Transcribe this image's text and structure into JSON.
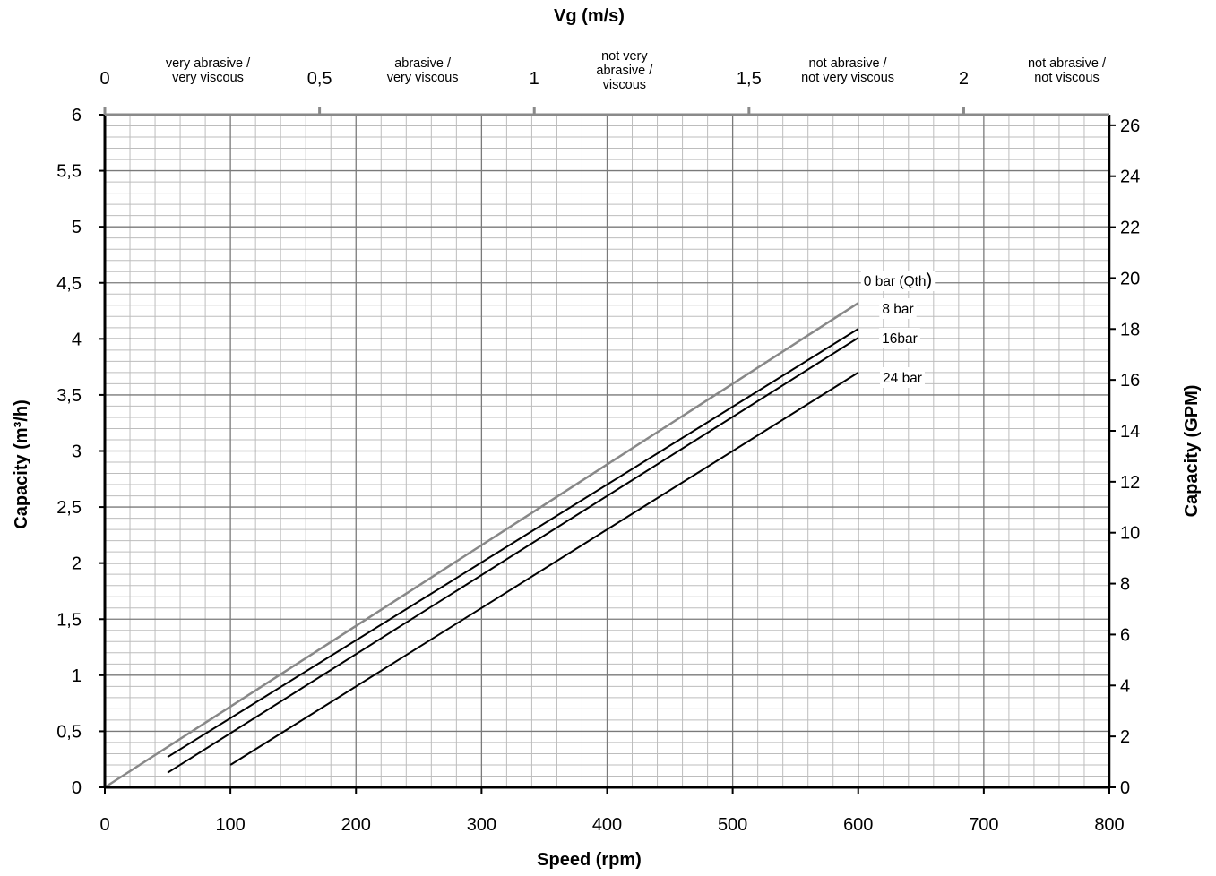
{
  "chart_data": {
    "type": "line",
    "x_axis": {
      "label": "Speed (rpm)",
      "range": [
        0,
        800
      ],
      "ticks": [
        {
          "value": 0,
          "label": "0"
        },
        {
          "value": 100,
          "label": "100"
        },
        {
          "value": 200,
          "label": "200"
        },
        {
          "value": 300,
          "label": "300"
        },
        {
          "value": 400,
          "label": "400"
        },
        {
          "value": 500,
          "label": "500"
        },
        {
          "value": 600,
          "label": "600"
        },
        {
          "value": 700,
          "label": "700"
        },
        {
          "value": 800,
          "label": "800"
        }
      ]
    },
    "y_axis": {
      "label": "Capacity (m³/h)",
      "range": [
        0,
        6
      ],
      "ticks": [
        {
          "value": 0,
          "label": "0"
        },
        {
          "value": 0.5,
          "label": "0,5"
        },
        {
          "value": 1,
          "label": "1"
        },
        {
          "value": 1.5,
          "label": "1,5"
        },
        {
          "value": 2,
          "label": "2"
        },
        {
          "value": 2.5,
          "label": "2,5"
        },
        {
          "value": 3,
          "label": "3"
        },
        {
          "value": 3.5,
          "label": "3,5"
        },
        {
          "value": 4,
          "label": "4"
        },
        {
          "value": 4.5,
          "label": "4,5"
        },
        {
          "value": 5,
          "label": "5"
        },
        {
          "value": 5.5,
          "label": "5,5"
        },
        {
          "value": 6,
          "label": "6"
        }
      ]
    },
    "y2_axis": {
      "label": "Capacity (GPM)",
      "range": [
        0,
        26.417
      ],
      "ticks": [
        {
          "value": 0,
          "label": "0"
        },
        {
          "value": 2,
          "label": "2"
        },
        {
          "value": 4,
          "label": "4"
        },
        {
          "value": 6,
          "label": "6"
        },
        {
          "value": 8,
          "label": "8"
        },
        {
          "value": 10,
          "label": "10"
        },
        {
          "value": 12,
          "label": "12"
        },
        {
          "value": 14,
          "label": "14"
        },
        {
          "value": 16,
          "label": "16"
        },
        {
          "value": 18,
          "label": "18"
        },
        {
          "value": 20,
          "label": "20"
        },
        {
          "value": 22,
          "label": "22"
        },
        {
          "value": 24,
          "label": "24"
        },
        {
          "value": 26,
          "label": "26"
        }
      ]
    },
    "x2_axis": {
      "label": "Vg (m/s)",
      "speed_at_1_ms": 342,
      "ticks": [
        {
          "value": 0,
          "label": "0"
        },
        {
          "value": 0.5,
          "label": "0,5"
        },
        {
          "value": 1,
          "label": "1"
        },
        {
          "value": 1.5,
          "label": "1,5"
        },
        {
          "value": 2,
          "label": "2"
        }
      ]
    },
    "zones": [
      {
        "lines": [
          "very abrasive /",
          "very viscous"
        ],
        "vg_center": 0.24
      },
      {
        "lines": [
          "abrasive /",
          "very viscous"
        ],
        "vg_center": 0.74
      },
      {
        "lines": [
          "not very",
          "abrasive /",
          "viscous"
        ],
        "vg_center": 1.21
      },
      {
        "lines": [
          "not  abrasive /",
          "not very viscous"
        ],
        "vg_center": 1.73
      },
      {
        "lines": [
          "not abrasive /",
          "not  viscous"
        ],
        "vg_center": 2.24
      }
    ],
    "series": [
      {
        "name": "0 bar (Qth",
        "label_suffix": ")",
        "color": "#888888",
        "x": [
          0,
          600
        ],
        "y": [
          0,
          4.32
        ]
      },
      {
        "name": "8 bar",
        "color": "#000000",
        "x": [
          50,
          600
        ],
        "y": [
          0.27,
          4.09
        ]
      },
      {
        "name": "16bar",
        "color": "#000000",
        "x": [
          50,
          600
        ],
        "y": [
          0.13,
          4.01
        ]
      },
      {
        "name": "24 bar",
        "color": "#000000",
        "x": [
          100,
          600
        ],
        "y": [
          0.2,
          3.7
        ]
      }
    ],
    "grid": true
  }
}
